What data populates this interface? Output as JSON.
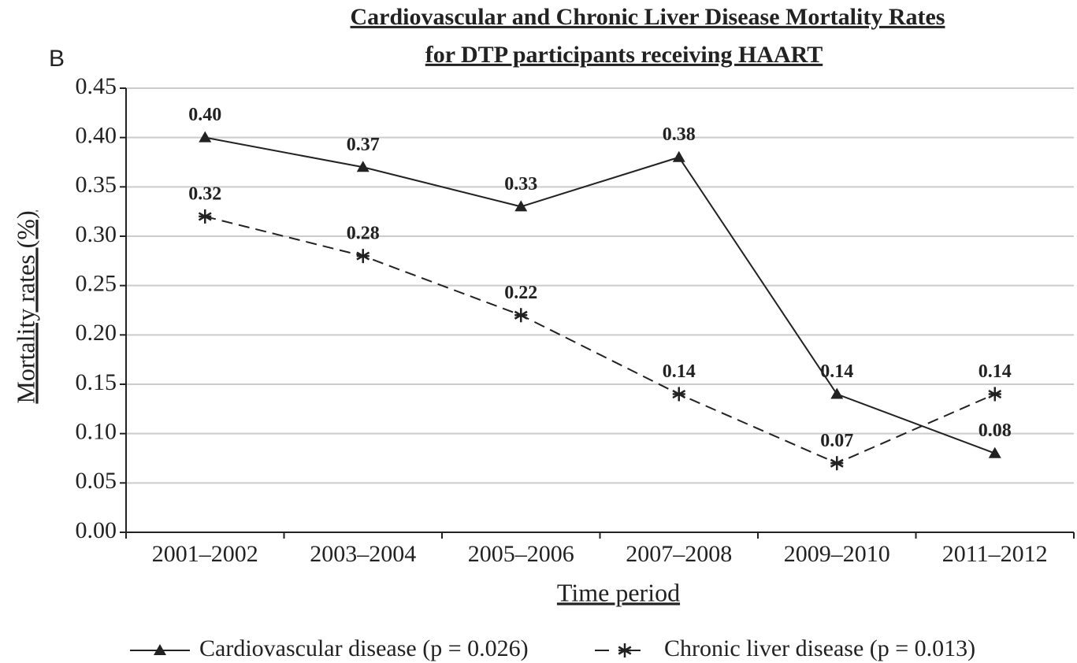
{
  "chart_data": {
    "type": "line",
    "panel_label": "B",
    "title": [
      "Cardiovascular and Chronic Liver Disease Mortality Rates",
      "for DTP participants receiving HAART"
    ],
    "x_label": "Time period",
    "y_label": "Mortality rates (%)",
    "categories": [
      "2001–2002",
      "2003–2004",
      "2005–2006",
      "2007–2008",
      "2009–2010",
      "2011–2012"
    ],
    "series": [
      {
        "name": "Cardiovascular disease (p = 0.026)",
        "color": "#222222",
        "dash": false,
        "marker": "triangle",
        "values": [
          0.4,
          0.37,
          0.33,
          0.38,
          0.14,
          0.08
        ],
        "value_labels": [
          "0.40",
          "0.37",
          "0.33",
          "0.38",
          "0.14",
          "0.08"
        ]
      },
      {
        "name": "Chronic liver disease (p = 0.013)",
        "color": "#222222",
        "dash": true,
        "marker": "asterisk",
        "values": [
          0.32,
          0.28,
          0.22,
          0.14,
          0.07,
          0.14
        ],
        "value_labels": [
          "0.32",
          "0.28",
          "0.22",
          "0.14",
          "0.07",
          "0.14"
        ]
      }
    ],
    "ylim": [
      0,
      0.45
    ],
    "yticks": [
      {
        "value": 0,
        "label": "0.00"
      },
      0.05,
      {
        "value": 0.1,
        "label": "0.10"
      },
      0.15,
      {
        "value": 0.2,
        "label": "0.20"
      },
      0.25,
      {
        "value": 0.3,
        "label": "0.30"
      },
      0.35,
      {
        "value": 0.4,
        "label": "0.40"
      },
      0.45
    ],
    "grid": true,
    "legend": "bottom"
  }
}
